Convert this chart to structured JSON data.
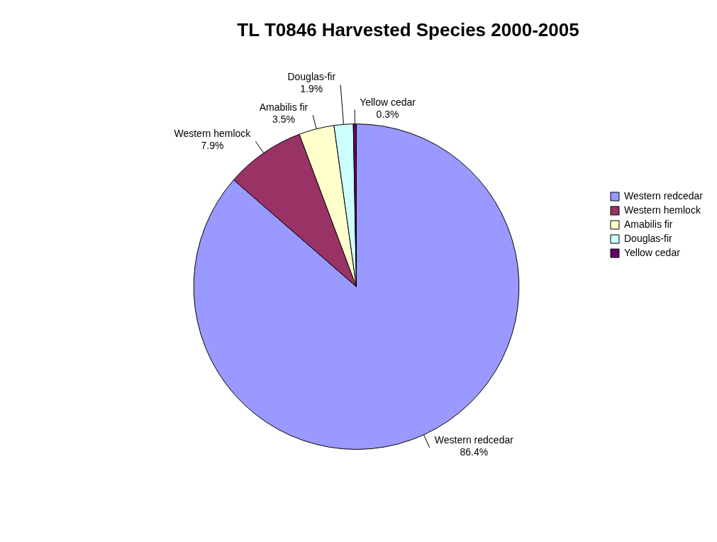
{
  "chart_data": {
    "type": "pie",
    "title": "TL T0846 Harvested Species 2000-2005",
    "categories": [
      "Western redcedar",
      "Western hemlock",
      "Amabilis fir",
      "Douglas-fir",
      "Yellow cedar"
    ],
    "values": [
      86.4,
      7.9,
      3.5,
      1.9,
      0.3
    ],
    "value_labels": [
      "86.4%",
      "7.9%",
      "3.5%",
      "1.9%",
      "0.3%"
    ],
    "colors": [
      "#9999ff",
      "#993366",
      "#ffffcc",
      "#ccffff",
      "#660066"
    ],
    "legend": "right"
  }
}
